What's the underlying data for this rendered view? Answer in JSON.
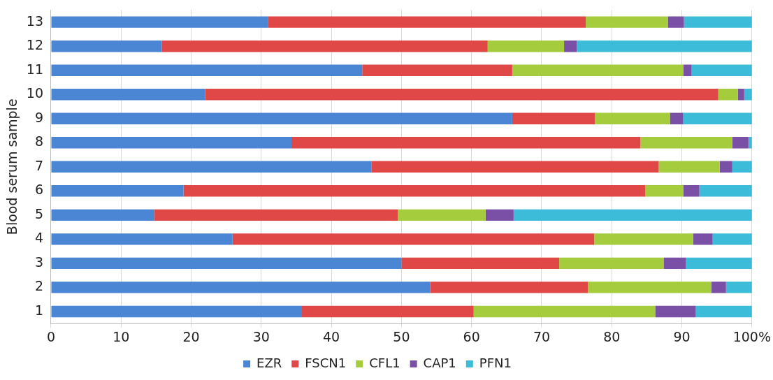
{
  "chart_data": {
    "type": "bar",
    "orientation": "horizontal",
    "stacked": true,
    "ylabel": "Blood serum sample",
    "categories": [
      "13",
      "12",
      "11",
      "10",
      "9",
      "8",
      "7",
      "6",
      "5",
      "4",
      "3",
      "2",
      "1"
    ],
    "series": [
      {
        "name": "EZR",
        "color": "#4a86d4",
        "values": [
          31,
          15.8,
          44.4,
          22,
          65.8,
          34.3,
          45.7,
          18.9,
          14.7,
          25.9,
          50,
          54.1,
          35.8
        ]
      },
      {
        "name": "FSCN1",
        "color": "#e04848",
        "values": [
          45.3,
          46.5,
          21.4,
          73.2,
          11.8,
          49.8,
          41,
          65.9,
          34.8,
          51.6,
          22.5,
          22.5,
          24.5
        ]
      },
      {
        "name": "CFL1",
        "color": "#a4cc3c",
        "values": [
          11.7,
          10.9,
          24.4,
          2.8,
          10.7,
          13.1,
          8.7,
          5.4,
          12.5,
          14.1,
          14.9,
          17.6,
          25.9
        ]
      },
      {
        "name": "CAP1",
        "color": "#7a4fa6",
        "values": [
          2.3,
          1.8,
          1.2,
          0.9,
          1.9,
          2.3,
          1.8,
          2.3,
          4,
          2.8,
          3.2,
          2.1,
          5.8
        ]
      },
      {
        "name": "PFN1",
        "color": "#3cbcd8",
        "values": [
          9.7,
          25,
          8.6,
          1.1,
          9.8,
          0.5,
          2.8,
          7.5,
          34,
          5.6,
          9.4,
          3.7,
          8
        ]
      }
    ],
    "xlim": [
      0,
      100
    ],
    "xticks": [
      0,
      10,
      20,
      30,
      40,
      50,
      60,
      70,
      80,
      90,
      {
        "value": 100,
        "label": "100%"
      }
    ],
    "grid": "x",
    "legend": "bottom"
  }
}
